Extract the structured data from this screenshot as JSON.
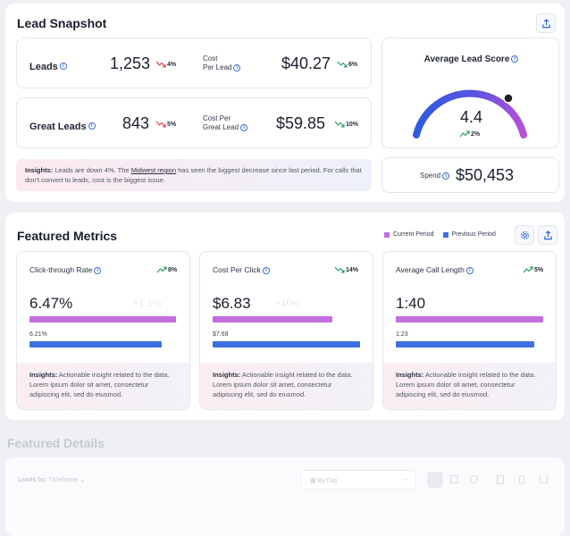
{
  "snapshot": {
    "title": "Lead Snapshot",
    "leads": {
      "label": "Leads",
      "value": "1,253",
      "change": "4%"
    },
    "cost_per_lead": {
      "label_line1": "Cost",
      "label_line2": "Per Lead",
      "value": "$40.27",
      "change": "6%"
    },
    "great_leads": {
      "label": "Great Leads",
      "value": "843",
      "change": "5%"
    },
    "cost_per_great_lead": {
      "label_line1": "Cost Per",
      "label_line2": "Great Lead",
      "value": "$59.85",
      "change": "10%"
    },
    "insight": {
      "bold": "Insights:",
      "text1": "Leads are down 4%. The",
      "link": "Midwest region",
      "text2": "has seen the biggest decrease since last period. For calls that don't convert to leads, cost is the biggest issue."
    },
    "avg_score": {
      "title": "Average Lead Score",
      "value": "4.4",
      "change": "2%"
    },
    "spend": {
      "label": "Spend",
      "value": "$50,453"
    }
  },
  "featured": {
    "title": "Featured Metrics",
    "legend_current": "Current Period",
    "legend_previous": "Previous Period",
    "colors": {
      "current": "#c36ee0",
      "previous": "#3d6fe0"
    },
    "metrics": [
      {
        "title": "Click-through Rate",
        "change": "8%",
        "value": "6.47%",
        "ghost": "+1.1%",
        "previous": "6.21%",
        "insight_bold": "Insights:",
        "insight_text": "Actionable insight related to the data. Lorem ipsum dolor sit amet, consectetur adipiscing elit, sed do eiusmod."
      },
      {
        "title": "Cost Per Click",
        "change": "14%",
        "value": "$6.83",
        "ghost": "+10%",
        "previous": "$7.69",
        "insight_bold": "Insights:",
        "insight_text": "Actionable insight related to the data. Lorem ipsum dolor sit amet, consectetur adipiscing elit, sed do eiusmod."
      },
      {
        "title": "Average Call Length",
        "change": "5%",
        "value": "1:40",
        "ghost": "",
        "previous": "1:23",
        "insight_bold": "Insights:",
        "insight_text": "Actionable insight related to the data. Lorem ipsum dolor sit amet, consectetur adipiscing elit, sed do eiusmod."
      }
    ]
  },
  "details": {
    "title": "Featured Details",
    "leads_by": "Leads by:",
    "timeframe": "Timeframe",
    "by_day": "By Day"
  }
}
